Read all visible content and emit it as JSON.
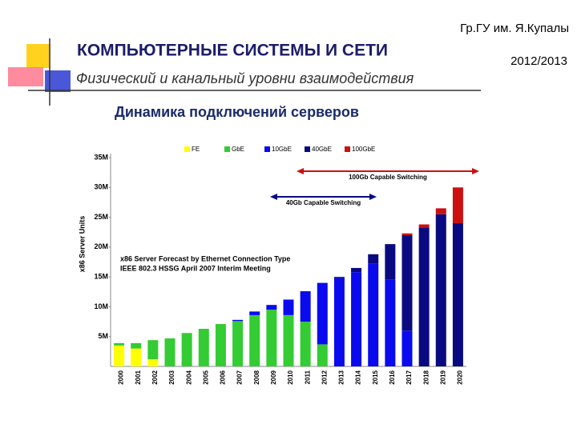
{
  "header": {
    "org": "Гр.ГУ им. Я.Купалы",
    "year": "2012/2013",
    "title": "КОМПЬЮТЕРНЫЕ СИСТЕМЫ  И СЕТИ",
    "subtitle": "Физический и канальный уровни взаимодействия",
    "slide_title": "Динамика подключений серверов"
  },
  "chart_data": {
    "type": "stacked-bar",
    "y_label": "x86 Server Units",
    "annotations": [
      "x86 Server Forecast by Ethernet Connection Type",
      "IEEE 802.3 HSSG  April 2007 Interim Meeting",
      "100Gb Capable Switching",
      "40Gb Capable Switching"
    ],
    "categories": [
      "2000",
      "2001",
      "2002",
      "2003",
      "2004",
      "2005",
      "2006",
      "2007",
      "2008",
      "2009",
      "2010",
      "2011",
      "2012",
      "2013",
      "2014",
      "2015",
      "2016",
      "2017",
      "2018",
      "2019",
      "2020"
    ],
    "series": [
      {
        "name": "FE",
        "color": "#ffff00",
        "values": [
          3.5,
          3.0,
          1.2,
          0,
          0,
          0,
          0,
          0,
          0,
          0,
          0,
          0,
          0,
          0,
          0,
          0,
          0,
          0,
          0,
          0,
          0
        ]
      },
      {
        "name": "GbE",
        "color": "#33cc33",
        "values": [
          0.4,
          0.9,
          3.2,
          4.7,
          5.6,
          6.3,
          7.1,
          7.6,
          8.6,
          9.5,
          8.6,
          7.5,
          3.7,
          0,
          0,
          0,
          0,
          0,
          0,
          0,
          0
        ]
      },
      {
        "name": "10GbE",
        "color": "#0a0aee",
        "values": [
          0,
          0,
          0,
          0,
          0,
          0,
          0,
          0.2,
          0.6,
          0.8,
          2.6,
          5.1,
          10.3,
          14.8,
          15.8,
          17.2,
          14.6,
          6.0,
          0,
          0,
          0
        ]
      },
      {
        "name": "40GbE",
        "color": "#0a0a80",
        "values": [
          0,
          0,
          0,
          0,
          0,
          0,
          0,
          0,
          0,
          0,
          0,
          0,
          0,
          0.2,
          0.7,
          1.6,
          5.9,
          16.0,
          23.3,
          25.5,
          24.0
        ]
      },
      {
        "name": "100GbE",
        "color": "#cc1010",
        "values": [
          0,
          0,
          0,
          0,
          0,
          0,
          0,
          0,
          0,
          0,
          0,
          0,
          0,
          0,
          0,
          0,
          0,
          0.3,
          0.5,
          1.0,
          6.0
        ]
      }
    ],
    "ylim": [
      0,
      35
    ],
    "yticks": [
      {
        "value": 5,
        "label": "5M"
      },
      {
        "value": 10,
        "label": "10M"
      },
      {
        "value": 15,
        "label": "15M"
      },
      {
        "value": 20,
        "label": "20M"
      },
      {
        "value": 25,
        "label": "25M"
      },
      {
        "value": 30,
        "label": "30M"
      },
      {
        "value": 35,
        "label": "35M"
      }
    ],
    "grid": false
  }
}
